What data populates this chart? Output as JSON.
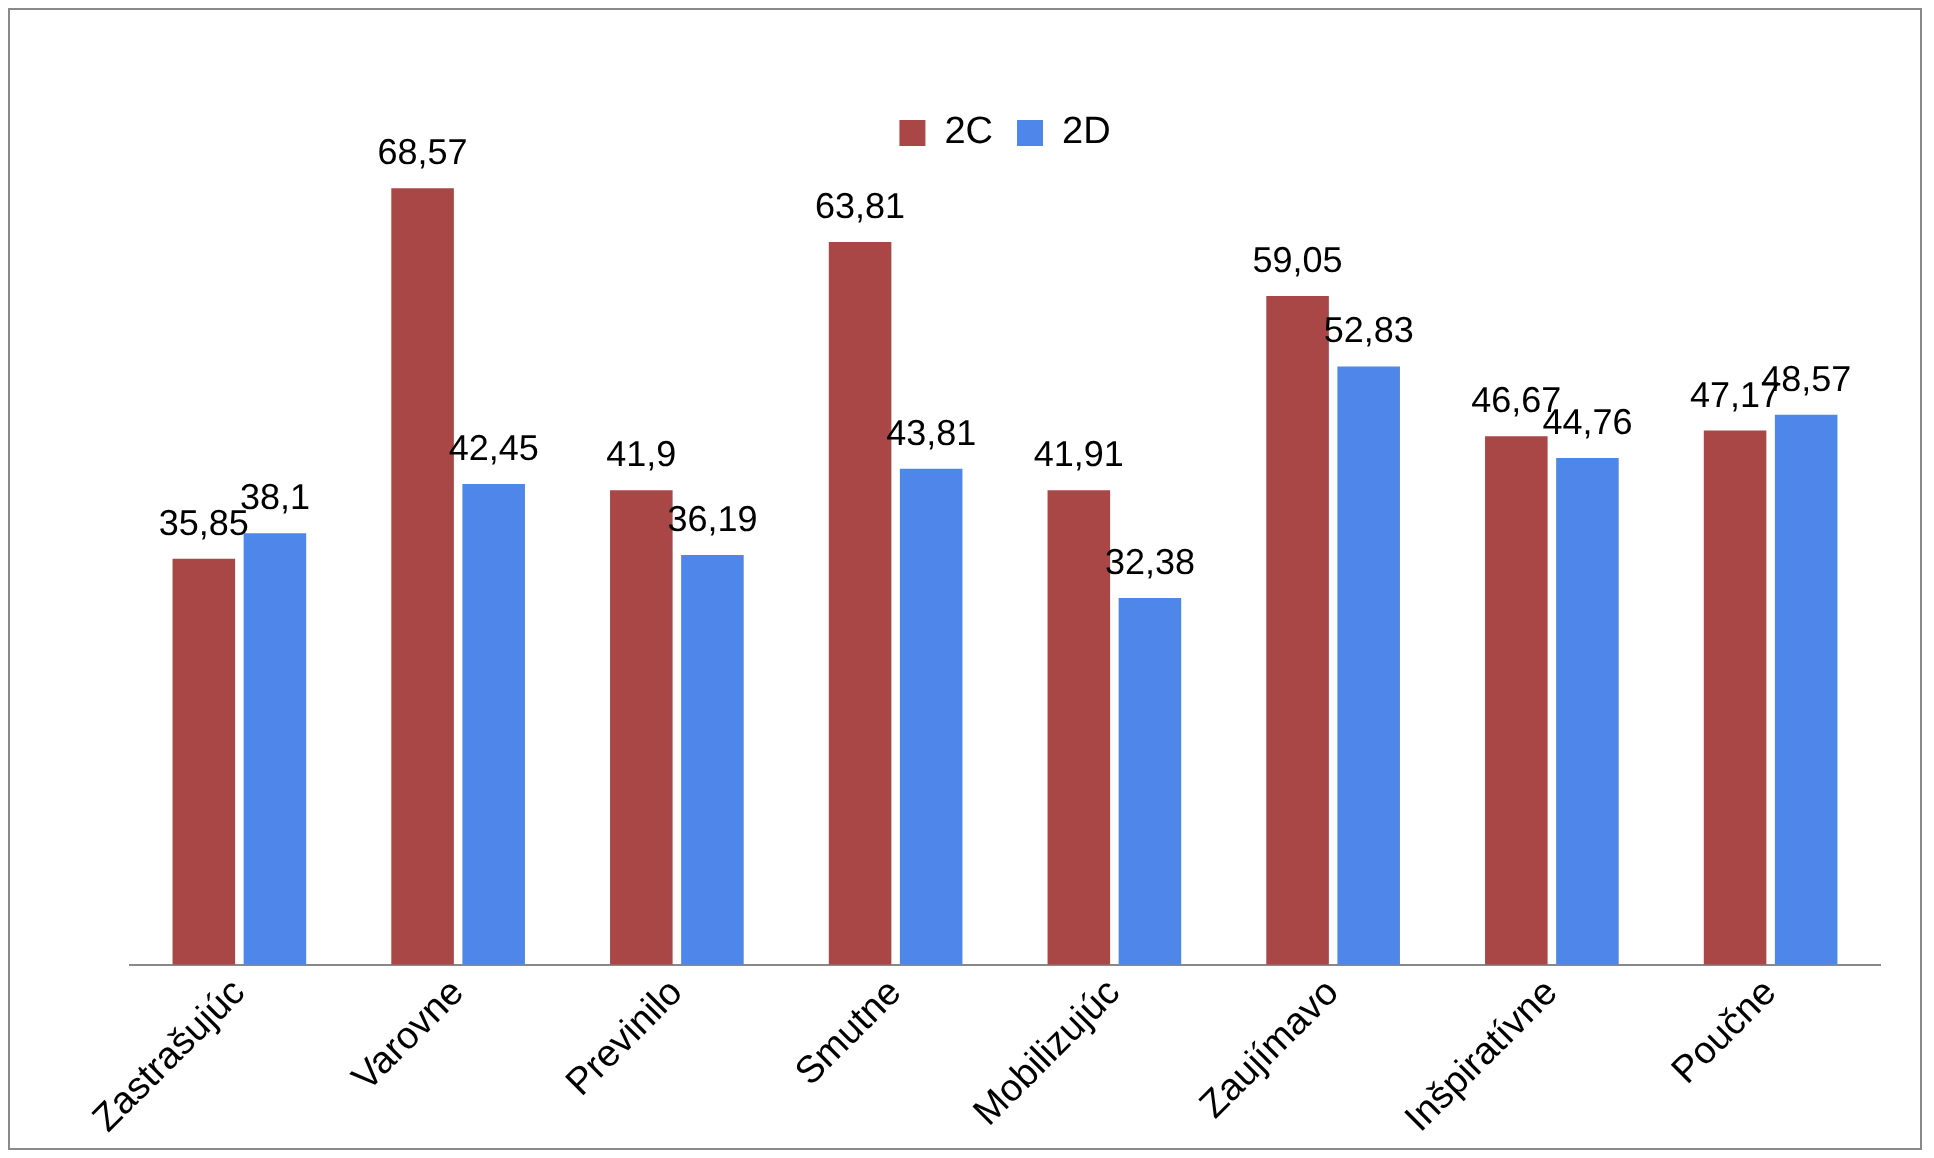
{
  "chart_data": {
    "type": "bar",
    "categories": [
      "Zastrašujúc",
      "Varovne",
      "Previnilo",
      "Smutne",
      "Mobilizujúc",
      "Zaujímavo",
      "Inšpiratívne",
      "Poučne"
    ],
    "series": [
      {
        "name": "2C",
        "color": "#a94646",
        "values": [
          35.85,
          68.57,
          41.9,
          63.81,
          41.91,
          59.05,
          46.67,
          47.17
        ],
        "value_labels": [
          "35,85",
          "68,57",
          "41,9",
          "63,81",
          "41,91",
          "59,05",
          "46,67",
          "47,17"
        ]
      },
      {
        "name": "2D",
        "color": "#4f86ea",
        "values": [
          38.1,
          42.45,
          36.19,
          43.81,
          32.38,
          52.83,
          44.76,
          48.57
        ],
        "value_labels": [
          "38,1",
          "42,45",
          "36,19",
          "43,81",
          "32,38",
          "52,83",
          "44,76",
          "48,57"
        ]
      }
    ],
    "legend": "top",
    "grid": false
  }
}
